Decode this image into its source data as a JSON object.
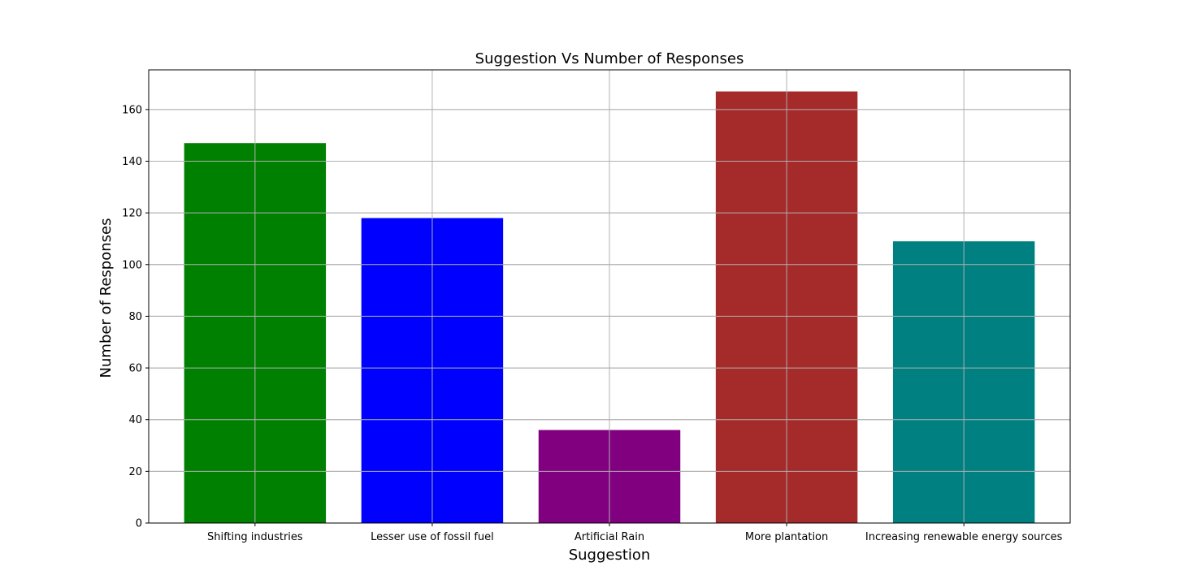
{
  "chart_data": {
    "type": "bar",
    "title": "Suggestion Vs Number of Responses",
    "xlabel": "Suggestion",
    "ylabel": "Number of Responses",
    "categories": [
      "Shifting industries",
      "Lesser use of fossil fuel",
      "Artificial Rain",
      "More plantation",
      "Increasing renewable energy sources"
    ],
    "values": [
      147,
      118,
      36,
      167,
      109
    ],
    "colors": [
      "#008000",
      "#0000ff",
      "#800080",
      "#a52a2a",
      "#008080"
    ],
    "ylim": [
      0,
      175.35
    ],
    "yticks": [
      0,
      20,
      40,
      60,
      80,
      100,
      120,
      140,
      160
    ],
    "grid": true,
    "legend": "none"
  }
}
